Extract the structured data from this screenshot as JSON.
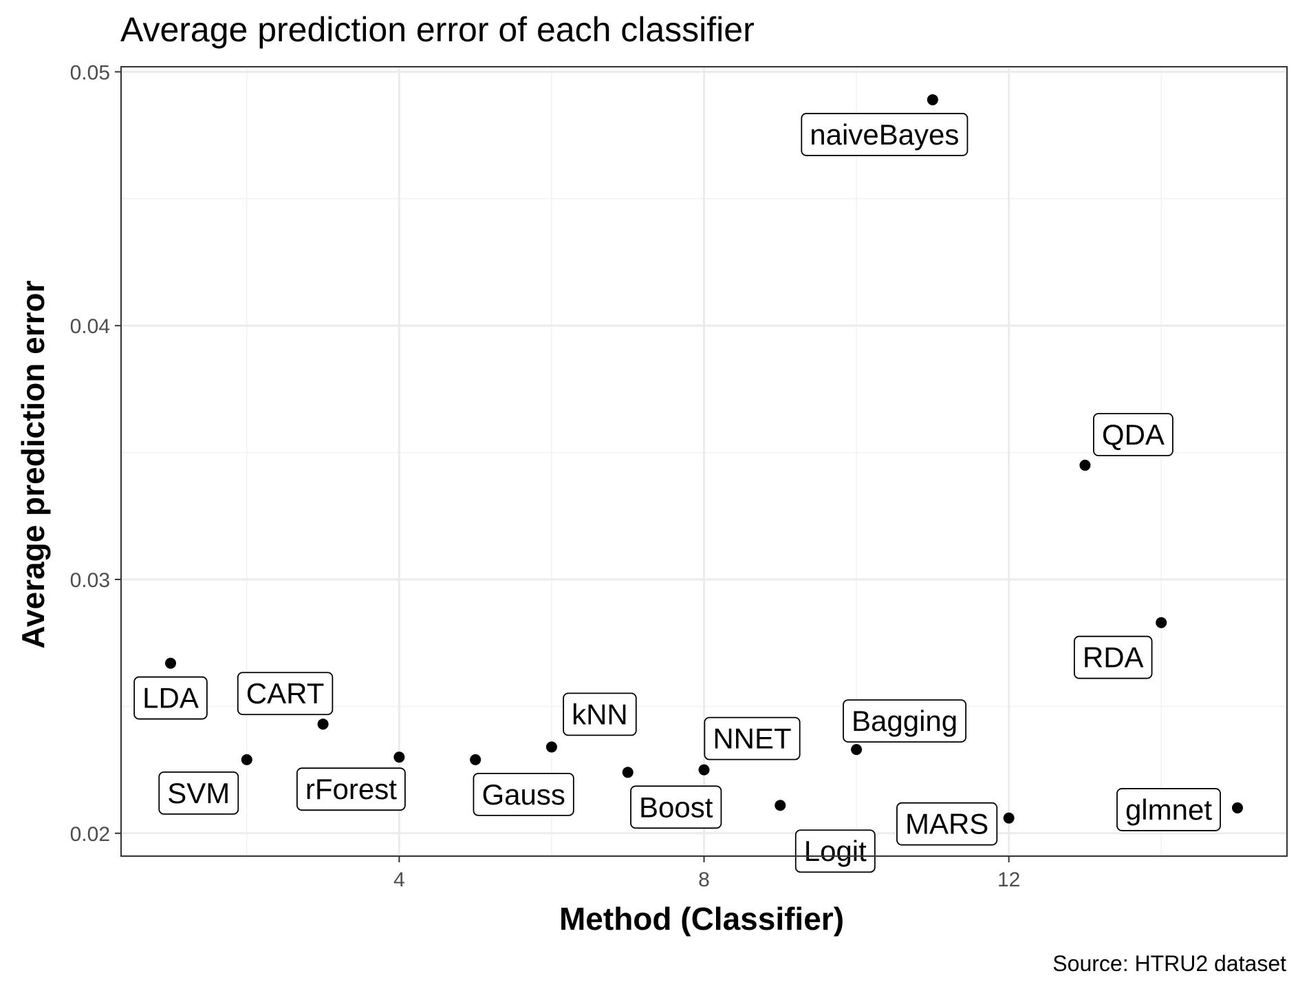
{
  "chart_data": {
    "type": "scatter",
    "title": "Average prediction error of each classifier",
    "xlabel": "Method (Classifier)",
    "ylabel": "Average prediction error",
    "caption": "Source: HTRU2 dataset",
    "xlim": [
      0.35,
      15.65
    ],
    "ylim": [
      0.0191,
      0.0502
    ],
    "x_ticks": [
      4,
      8,
      12
    ],
    "x_tick_labels": [
      "4",
      "8",
      "12"
    ],
    "y_ticks": [
      0.02,
      0.03,
      0.04,
      0.05
    ],
    "y_tick_labels": [
      "0.02",
      "0.03",
      "0.04",
      "0.05"
    ],
    "grid": true,
    "points": [
      {
        "x": 1,
        "y": 0.0267,
        "label": "LDA"
      },
      {
        "x": 2,
        "y": 0.0229,
        "label": "SVM"
      },
      {
        "x": 3,
        "y": 0.0243,
        "label": "CART"
      },
      {
        "x": 4,
        "y": 0.023,
        "label": "rForest"
      },
      {
        "x": 5,
        "y": 0.0229,
        "label": "Gauss"
      },
      {
        "x": 6,
        "y": 0.0234,
        "label": "kNN"
      },
      {
        "x": 7,
        "y": 0.0224,
        "label": "Boost"
      },
      {
        "x": 8,
        "y": 0.0225,
        "label": "NNET"
      },
      {
        "x": 9,
        "y": 0.0211,
        "label": "Logit"
      },
      {
        "x": 10,
        "y": 0.0233,
        "label": "Bagging"
      },
      {
        "x": 11,
        "y": 0.0489,
        "label": "naiveBayes"
      },
      {
        "x": 12,
        "y": 0.0206,
        "label": "MARS"
      },
      {
        "x": 13,
        "y": 0.0345,
        "label": "QDA"
      },
      {
        "x": 14,
        "y": 0.0283,
        "label": "RDA"
      },
      {
        "x": 15,
        "y": 0.021,
        "label": "glmnet"
      }
    ]
  }
}
